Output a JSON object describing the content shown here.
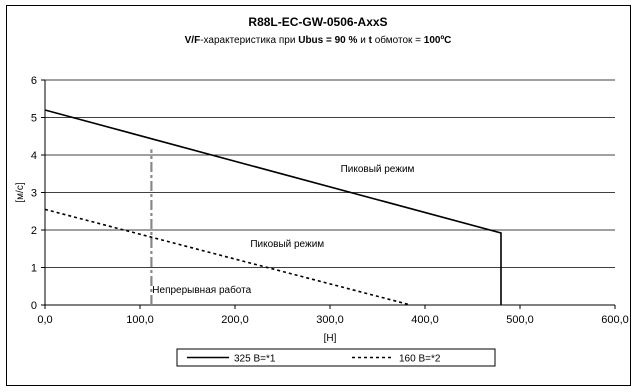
{
  "chart_data": {
    "type": "line",
    "title": "R88L-EC-GW-0506-AxxS",
    "subtitle_parts": [
      {
        "text": "V/F",
        "bold": true
      },
      {
        "text": "-характеристика при ",
        "bold": false
      },
      {
        "text": "Ubus = 90 %",
        "bold": true
      },
      {
        "text": " и ",
        "bold": false
      },
      {
        "text": "t",
        "bold": true
      },
      {
        "text": " обмоток = ",
        "bold": false
      },
      {
        "text": "100ºC",
        "bold": true
      }
    ],
    "xlabel": "[Н]",
    "ylabel": "[м/с]",
    "xlim": [
      0,
      600
    ],
    "ylim": [
      0,
      6
    ],
    "x_ticks": [
      0,
      100,
      200,
      300,
      400,
      500,
      600
    ],
    "x_tick_labels": [
      "0,0",
      "100,0",
      "200,0",
      "300,0",
      "400,0",
      "500,0",
      "600,0"
    ],
    "y_ticks": [
      0,
      1,
      2,
      3,
      4,
      5,
      6
    ],
    "y_tick_labels": [
      "0",
      "1",
      "2",
      "3",
      "4",
      "5",
      "6"
    ],
    "grid": "horizontal",
    "series": [
      {
        "name": "325 В=*1",
        "style": "solid",
        "color": "#000000",
        "x": [
          0,
          480,
          480
        ],
        "y": [
          5.2,
          1.92,
          0
        ]
      },
      {
        "name": "160 В=*2",
        "style": "dotted",
        "color": "#000000",
        "x": [
          0,
          385
        ],
        "y": [
          2.55,
          0
        ]
      }
    ],
    "reference_lines": [
      {
        "x": 112,
        "y_from": 0,
        "y_to": 4.15,
        "style": "dash-dot",
        "color": "#888888"
      }
    ],
    "annotations": [
      {
        "text": "Пиковый режим",
        "x": 350,
        "y": 3.55
      },
      {
        "text": "Пиковый режим",
        "x": 255,
        "y": 1.55
      },
      {
        "text": "Непрерывная работа",
        "x": 165,
        "y": 0.32
      }
    ],
    "legend_placement": "bottom"
  }
}
